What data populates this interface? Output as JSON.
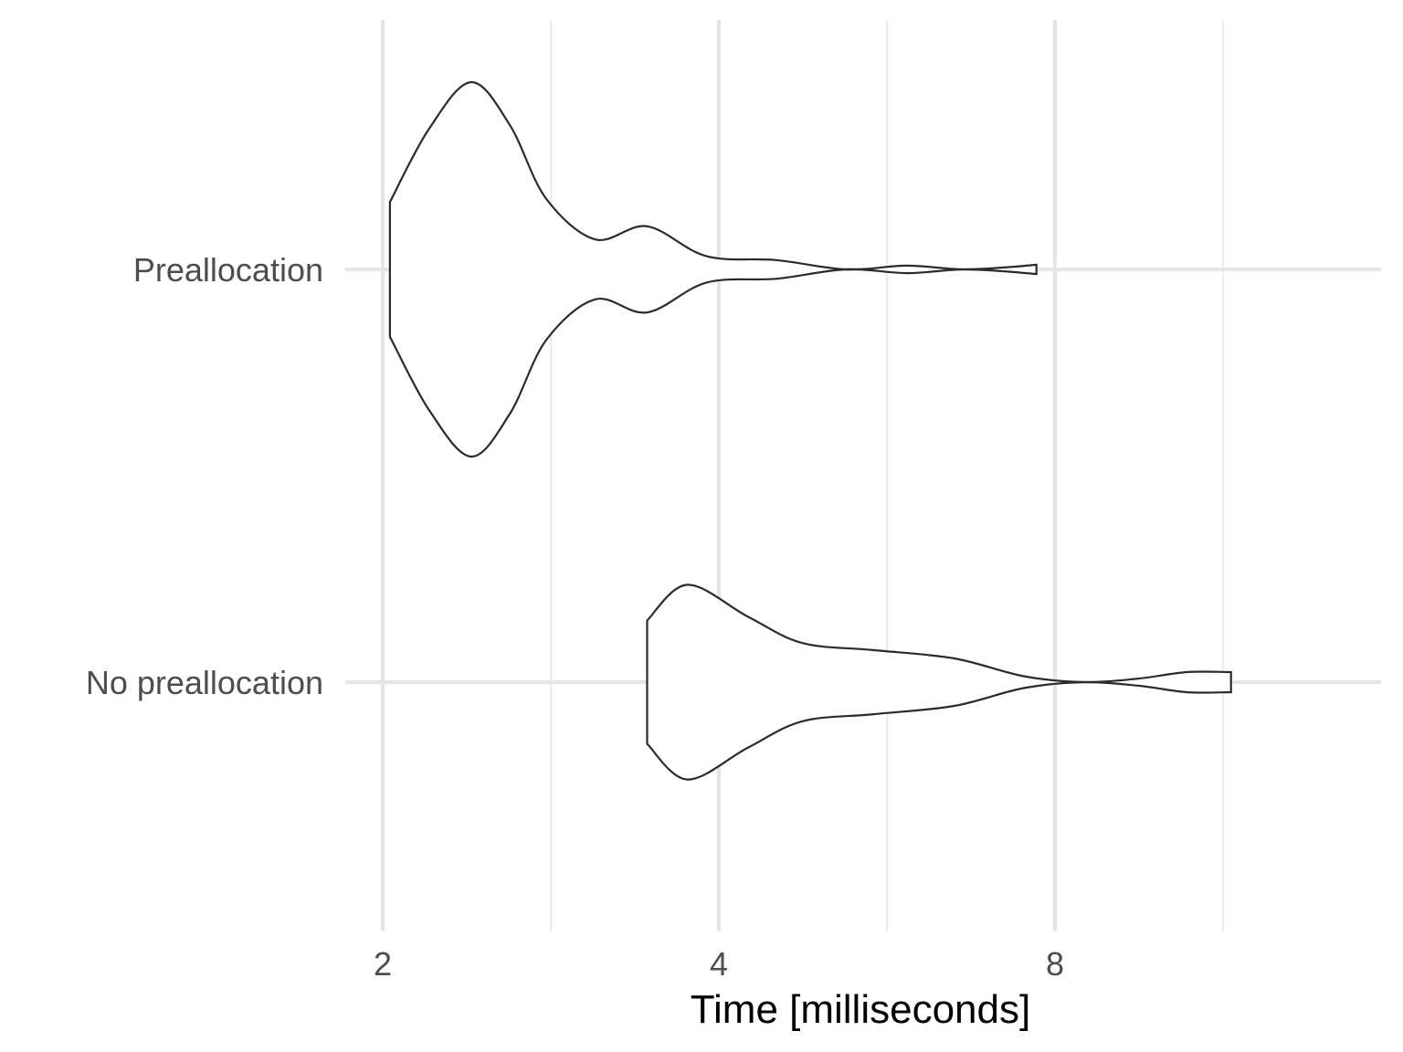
{
  "chart_data": {
    "type": "violin",
    "orientation": "horizontal",
    "title": "",
    "xlabel": "Time [milliseconds]",
    "ylabel": "",
    "x_scale": "log2",
    "xlim": [
      2,
      11.8
    ],
    "x_ticks": [
      2,
      4,
      8
    ],
    "x_tick_labels": [
      "2",
      "4",
      "8"
    ],
    "x_minor_ticks": [
      2.83,
      5.66,
      11.31
    ],
    "grid": true,
    "categories": [
      "Preallocation",
      "No preallocation"
    ],
    "series": [
      {
        "category": "Preallocation",
        "min": 2.03,
        "max": 7.7,
        "density": [
          [
            2.03,
            0.36
          ],
          [
            2.2,
            0.75
          ],
          [
            2.4,
            1.0
          ],
          [
            2.6,
            0.77
          ],
          [
            2.8,
            0.38
          ],
          [
            3.1,
            0.16
          ],
          [
            3.45,
            0.23
          ],
          [
            3.9,
            0.07
          ],
          [
            4.5,
            0.05
          ],
          [
            5.2,
            0.0
          ],
          [
            5.9,
            0.02
          ],
          [
            6.6,
            0.0
          ],
          [
            7.2,
            0.01
          ],
          [
            7.7,
            0.025
          ]
        ]
      },
      {
        "category": "No preallocation",
        "min": 3.45,
        "max": 11.5,
        "density": [
          [
            3.45,
            0.52
          ],
          [
            3.75,
            0.82
          ],
          [
            4.25,
            0.55
          ],
          [
            4.75,
            0.33
          ],
          [
            5.5,
            0.27
          ],
          [
            6.5,
            0.2
          ],
          [
            7.5,
            0.05
          ],
          [
            8.5,
            0.0
          ],
          [
            9.5,
            0.03
          ],
          [
            10.5,
            0.085
          ],
          [
            11.5,
            0.085
          ]
        ]
      }
    ]
  }
}
